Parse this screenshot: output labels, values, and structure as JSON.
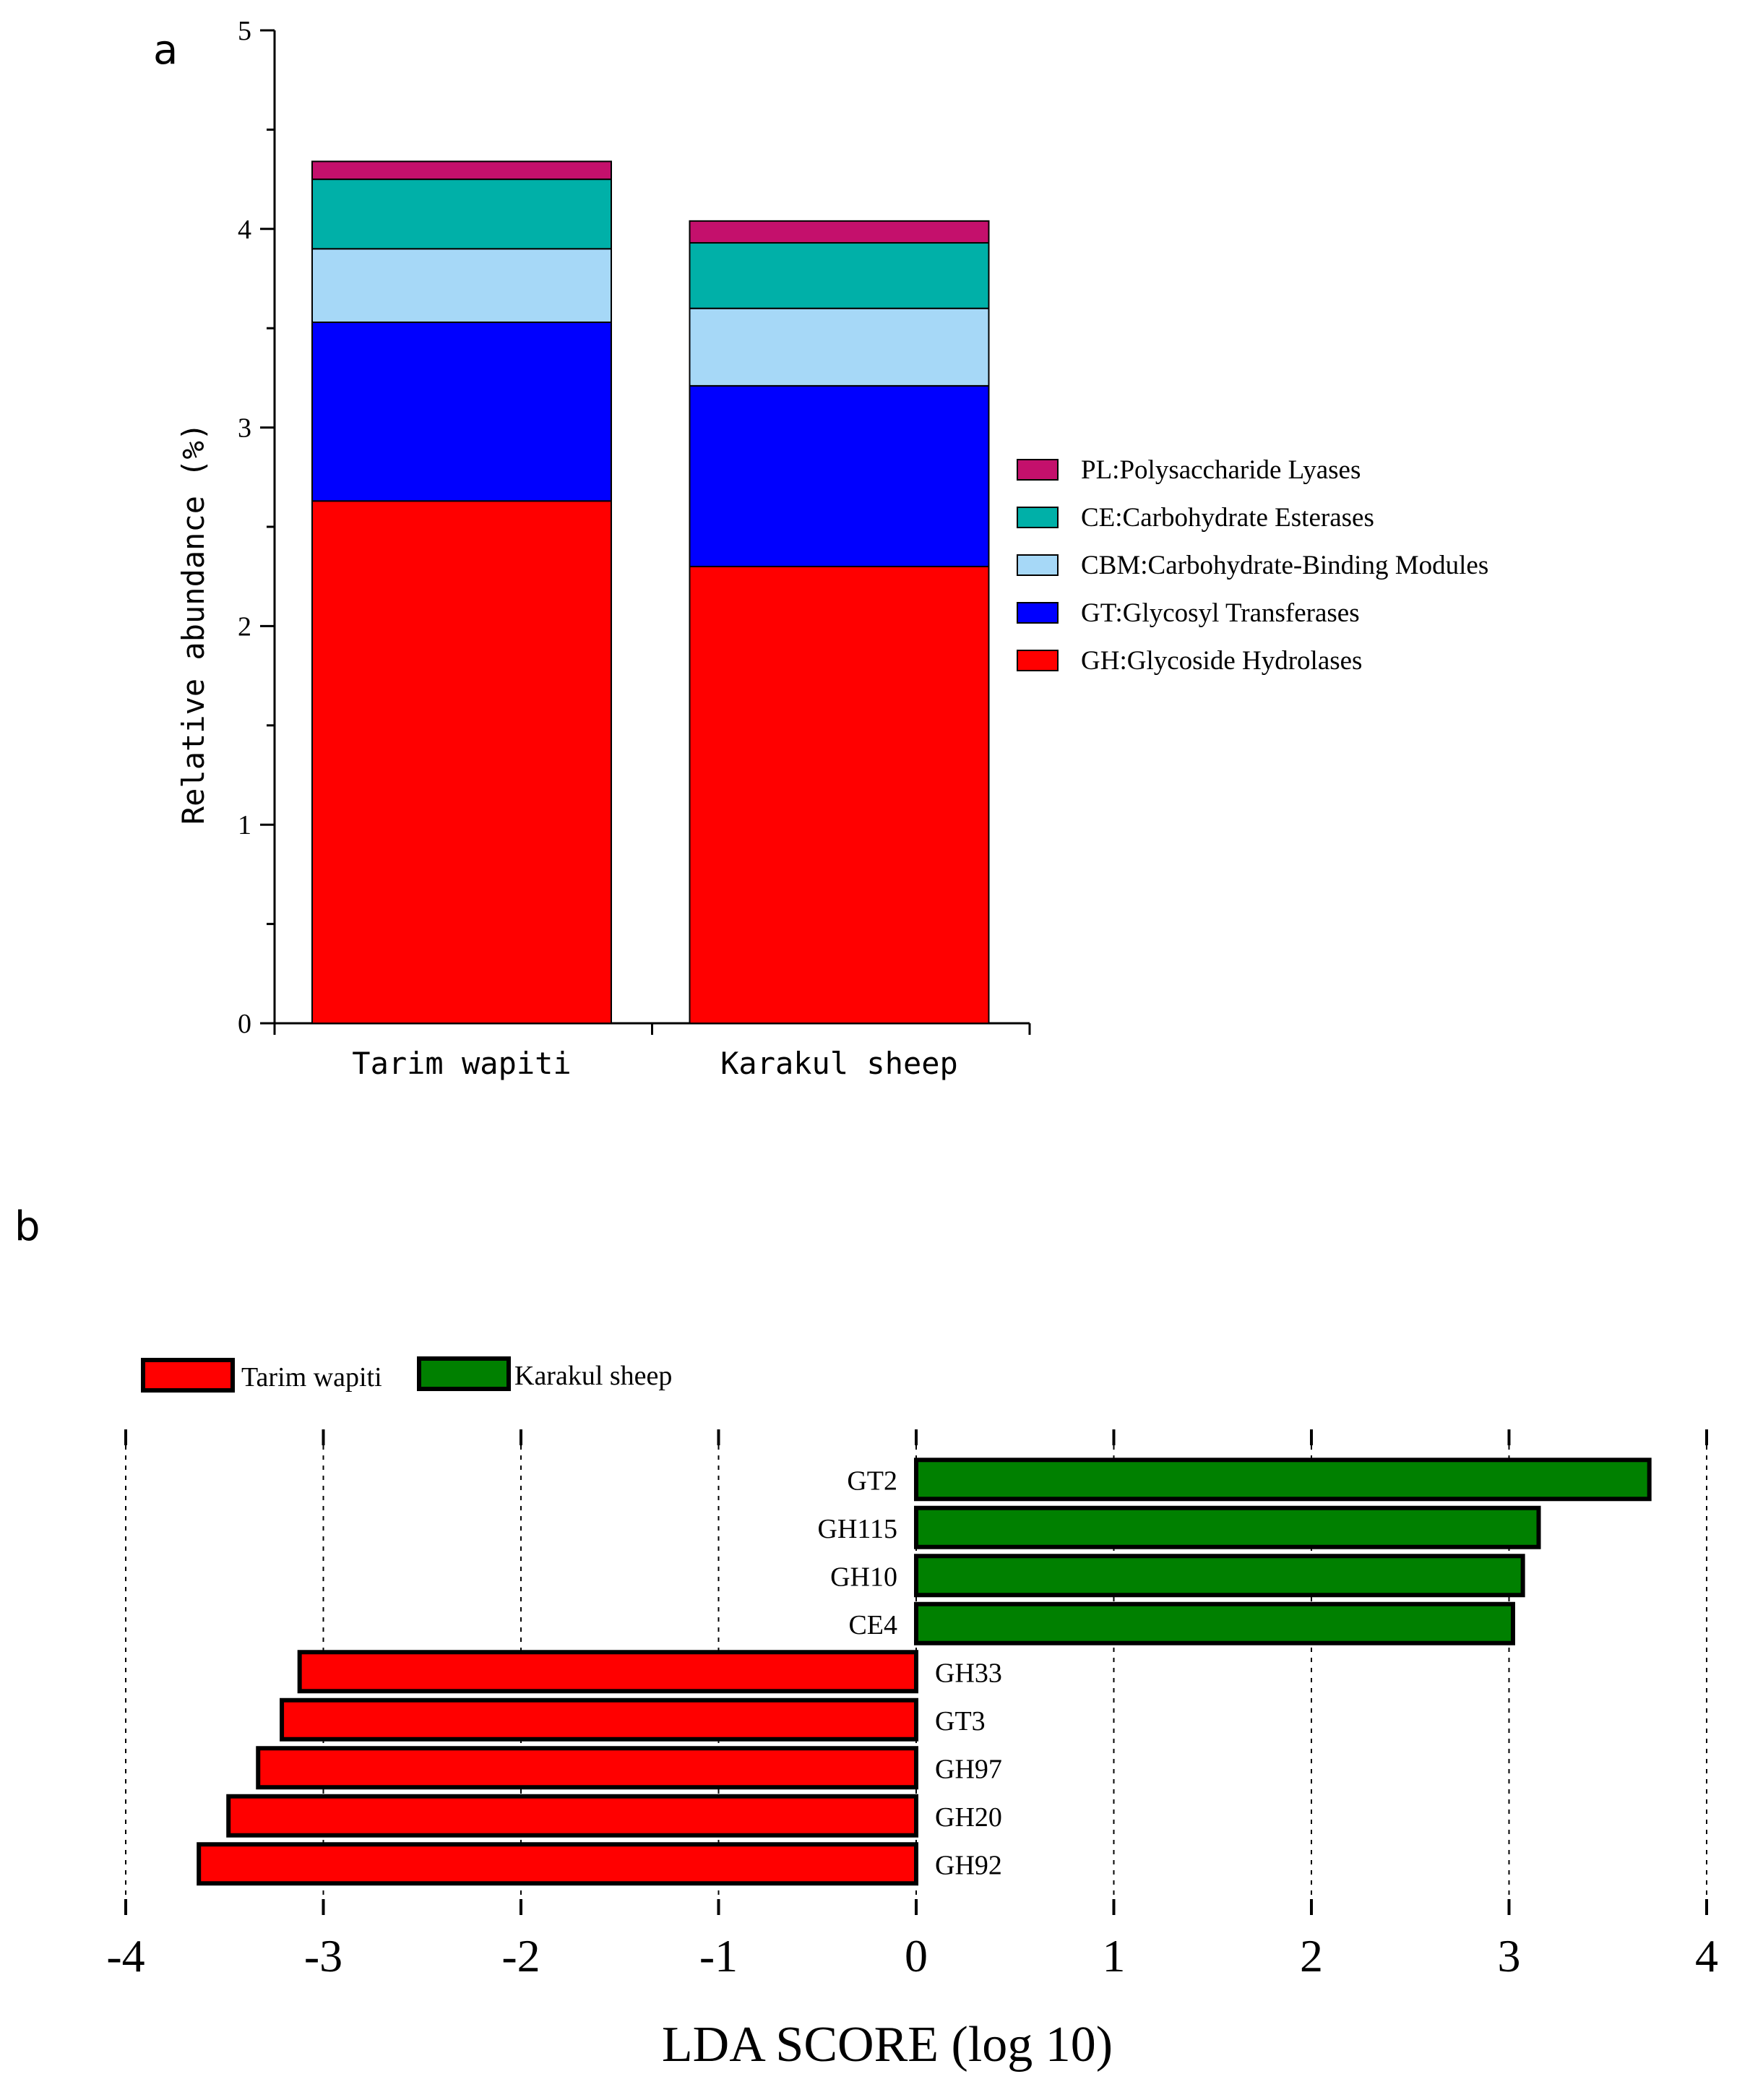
{
  "panels": {
    "a_label": "a",
    "b_label": "b"
  },
  "chart_data": [
    {
      "type": "bar",
      "stacked": true,
      "panel": "a",
      "title": "",
      "xlabel": "",
      "ylabel": "Relative abundance  (%)",
      "ylim": [
        0,
        5
      ],
      "yticks": [
        "0",
        "1",
        "2",
        "3",
        "4",
        "5"
      ],
      "categories": [
        "Tarim wapiti",
        "Karakul sheep"
      ],
      "series": [
        {
          "key": "GH",
          "name": "GH:Glycoside Hydrolases",
          "color": "#ff0000",
          "values": [
            2.63,
            2.3
          ]
        },
        {
          "key": "GT",
          "name": "GT:Glycosyl Transferases",
          "color": "#0000ff",
          "values": [
            0.9,
            0.91
          ]
        },
        {
          "key": "CBM",
          "name": "CBM:Carbohydrate-Binding Modules",
          "color": "#a6d8f7",
          "values": [
            0.37,
            0.39
          ]
        },
        {
          "key": "CE",
          "name": "CE:Carbohydrate Esterases",
          "color": "#00b0a8",
          "values": [
            0.35,
            0.33
          ]
        },
        {
          "key": "PL",
          "name": "PL:Polysaccharide Lyases",
          "color": "#c4106c",
          "values": [
            0.09,
            0.11
          ]
        }
      ],
      "legend_position": "right",
      "legend_order": [
        "PL",
        "CE",
        "CBM",
        "GT",
        "GH"
      ]
    },
    {
      "type": "bar",
      "orientation": "horizontal",
      "panel": "b",
      "title": "",
      "xlabel": "LDA SCORE (log 10)",
      "ylabel": "",
      "xlim": [
        -4,
        4
      ],
      "xticks": [
        "-4",
        "-3",
        "-2",
        "-1",
        "0",
        "1",
        "2",
        "3",
        "4"
      ],
      "legend": [
        {
          "name": "Tarim wapiti",
          "color": "#ff0000"
        },
        {
          "name": "Karakul sheep",
          "color": "#008000"
        }
      ],
      "legend_position": "top-left",
      "categories": [
        "GT2",
        "GH115",
        "GH10",
        "CE4",
        "GH33",
        "GT3",
        "GH97",
        "GH20",
        "GH92"
      ],
      "values": [
        3.71,
        3.15,
        3.07,
        3.02,
        -3.12,
        -3.21,
        -3.33,
        -3.48,
        -3.63
      ],
      "groups": [
        "Karakul sheep",
        "Karakul sheep",
        "Karakul sheep",
        "Karakul sheep",
        "Tarim wapiti",
        "Tarim wapiti",
        "Tarim wapiti",
        "Tarim wapiti",
        "Tarim wapiti"
      ]
    }
  ]
}
